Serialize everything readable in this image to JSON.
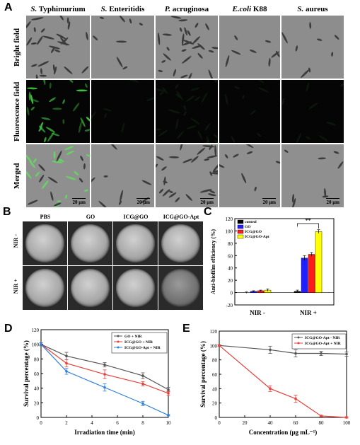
{
  "panel_a": {
    "label": "A",
    "columns": [
      "S. Typhimurium",
      "S. Enteritidis",
      "P. acruginosa",
      "E.coli K88",
      "S. aureus"
    ],
    "columns_italic_part": [
      "S.",
      "S.",
      "P.",
      "E.coli",
      "S."
    ],
    "columns_rest": [
      " Typhimurium",
      " Enteritidis",
      " acruginosa",
      " K88",
      " aureus"
    ],
    "rows": [
      "Bright field",
      "Fluorescence field",
      "Merged"
    ],
    "scale_bar": "20 μm"
  },
  "panel_b": {
    "label": "B",
    "columns": [
      "PBS",
      "GO",
      "ICG@GO",
      "ICG@GO-Apt"
    ],
    "rows": [
      "NIR -",
      "NIR +"
    ]
  },
  "panel_c": {
    "label": "C"
  },
  "panel_d": {
    "label": "D"
  },
  "panel_e": {
    "label": "E"
  },
  "chart_data": [
    {
      "id": "C",
      "type": "bar",
      "ylabel": "Anti-biofilm efficiency (%)",
      "categories": [
        "NIR -",
        "NIR +"
      ],
      "ylim": [
        -20,
        120
      ],
      "yticks": [
        -20,
        0,
        20,
        40,
        60,
        80,
        100,
        120
      ],
      "series": [
        {
          "name": "control",
          "color": "#000000",
          "values": [
            0,
            2
          ],
          "errors": [
            1,
            2
          ]
        },
        {
          "name": "GO",
          "color": "#1f1fff",
          "values": [
            2,
            56
          ],
          "errors": [
            1,
            4
          ]
        },
        {
          "name": "ICG@GO",
          "color": "#ff1a1a",
          "values": [
            3,
            62
          ],
          "errors": [
            1,
            3
          ]
        },
        {
          "name": "ICG@GO-Apt",
          "color": "#ffff00",
          "values": [
            4,
            99
          ],
          "errors": [
            2,
            3
          ]
        }
      ],
      "annotation": "**",
      "legend_position": "top-left"
    },
    {
      "id": "D",
      "type": "line",
      "xlabel": "Irradiation time (min)",
      "ylabel": "Survival percentage (%)",
      "xlim": [
        0,
        10
      ],
      "ylim": [
        0,
        120
      ],
      "xticks": [
        0,
        2,
        4,
        6,
        8,
        10
      ],
      "yticks": [
        0,
        20,
        40,
        60,
        80,
        100,
        120
      ],
      "legend_position": "top-right",
      "series": [
        {
          "name": "GO + NIR",
          "color": "#555555",
          "x": [
            0,
            2,
            5,
            8,
            10
          ],
          "y": [
            100,
            84,
            72,
            57,
            38
          ],
          "errors": [
            2,
            5,
            3,
            4,
            3
          ]
        },
        {
          "name": "ICG@GO + NIR",
          "color": "#e8413c",
          "x": [
            0,
            2,
            5,
            8,
            10
          ],
          "y": [
            100,
            74,
            59,
            46,
            33
          ],
          "errors": [
            2,
            5,
            6,
            3,
            3
          ]
        },
        {
          "name": "ICG@GO-Apt + NIR",
          "color": "#2f7fd8",
          "x": [
            0,
            2,
            5,
            8,
            10
          ],
          "y": [
            100,
            63,
            41,
            19,
            3
          ],
          "errors": [
            2,
            4,
            5,
            3,
            1
          ]
        }
      ]
    },
    {
      "id": "E",
      "type": "line",
      "xlabel": "Concentration (μg mL⁻¹)",
      "ylabel": "Survival percentage (%)",
      "xlim": [
        0,
        100
      ],
      "ylim": [
        0,
        120
      ],
      "xticks": [
        0,
        20,
        40,
        60,
        80,
        100
      ],
      "yticks": [
        0,
        20,
        40,
        60,
        80,
        100,
        120
      ],
      "legend_position": "top-right",
      "series": [
        {
          "name": "ICG@GO-Apt - NIR",
          "color": "#555555",
          "x": [
            0,
            40,
            60,
            80,
            100
          ],
          "y": [
            100,
            94,
            89,
            89,
            88
          ],
          "errors": [
            1,
            5,
            5,
            3,
            3
          ]
        },
        {
          "name": "ICG@GO-Apt + NIR",
          "color": "#e8413c",
          "x": [
            0,
            40,
            60,
            80,
            100
          ],
          "y": [
            100,
            40,
            26,
            2,
            0
          ],
          "errors": [
            1,
            4,
            5,
            1,
            1
          ]
        }
      ]
    }
  ]
}
